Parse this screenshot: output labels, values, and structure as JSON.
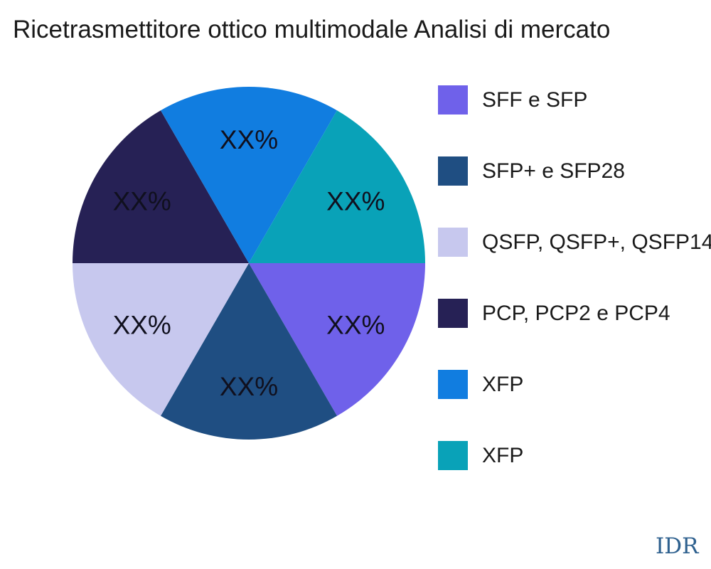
{
  "watermark": "IDR",
  "text_colors": {
    "title": "#1a1a1a",
    "legend": "#1a1a1a",
    "slice_label": "#10101e",
    "watermark": "#2f618f"
  },
  "chart_data": {
    "type": "pie",
    "title": "Ricetrasmettitore ottico multimodale Analisi di mercato",
    "legend_position": "right",
    "start_angle_deg": 0,
    "direction": "clockwise",
    "value_labels_placeholder": true,
    "slices": [
      {
        "label": "SFF e SFP",
        "value": 16.7,
        "value_display": "XX%",
        "color": "#6F61EA"
      },
      {
        "label": "SFP+ e SFP28",
        "value": 16.7,
        "value_display": "XX%",
        "color": "#1F4E82"
      },
      {
        "label": "QSFP, QSFP+, QSFP14",
        "value": 16.7,
        "value_display": "XX%",
        "color": "#C7C8EE"
      },
      {
        "label": "PCP, PCP2 e PCP4",
        "value": 16.7,
        "value_display": "XX%",
        "color": "#262155"
      },
      {
        "label": "XFP",
        "value": 16.7,
        "value_display": "XX%",
        "color": "#117DE0"
      },
      {
        "label": "XFP",
        "value": 16.7,
        "value_display": "XX%",
        "color": "#09A2B8"
      }
    ]
  }
}
